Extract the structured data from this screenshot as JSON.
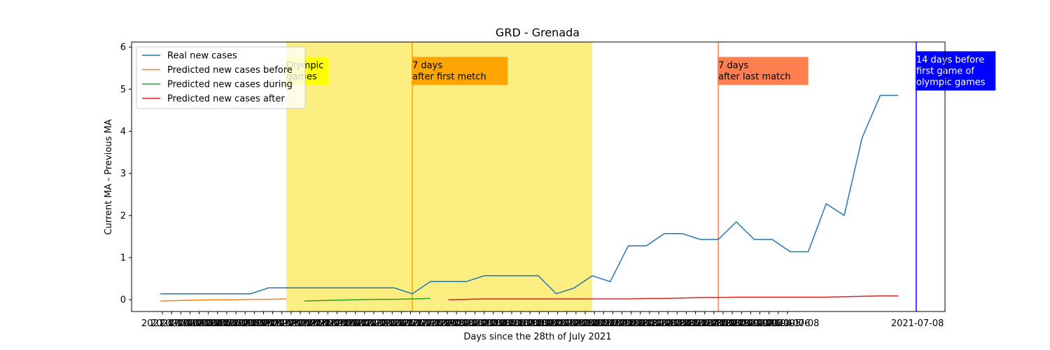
{
  "chart_data": {
    "type": "line",
    "title": "GRD - Grenada",
    "xlabel": "Days since the 28th of July 2021",
    "ylabel": "Current MA - Previous MA",
    "ylim": [
      -0.28,
      6.12
    ],
    "xlim": [
      -1.6,
      43.6
    ],
    "yticks": [
      0,
      1,
      2,
      3,
      4,
      5,
      6
    ],
    "x_tick_labels": [
      "2021-07-01",
      "2021-07-02",
      "2021-07-03",
      "2021-07-04",
      "2021-07-05",
      "2021-07-06",
      "2021-07-07",
      "2021-07-08",
      "2021-07-09",
      "2021-07-10",
      "2021-07-11",
      "2021-07-12",
      "2021-07-13",
      "2021-07-14",
      "2021-07-15",
      "2021-07-16",
      "2021-07-17",
      "2021-07-18",
      "2021-07-19",
      "2021-07-20",
      "2021-07-21",
      "2021-07-22",
      "2021-07-23",
      "2021-07-24",
      "2021-07-25",
      "2021-07-26",
      "2021-07-27",
      "2021-07-28",
      "2021-07-29",
      "2021-07-30",
      "2021-07-31",
      "2021-08-01",
      "2021-08-02",
      "2021-08-03",
      "2021-08-04",
      "2021-08-05",
      "2021-08-06",
      "2021-08-07",
      "2021-08-08",
      "2021-08-09",
      "2021-08-10",
      "2021-08-11",
      "2021-08-12",
      "2021-08-13",
      "2021-08-14",
      "2021-08-15",
      "2021-08-16",
      "2021-08-17",
      "2021-08-18",
      "2021-08-19",
      "2021-08-20",
      "2021-08-21",
      "2021-08-22",
      "2021-08-23",
      "2021-08-24",
      "2021-08-25",
      "2021-08-26",
      "2021-08-27",
      "2021-08-28",
      "2021-08-29",
      "2021-08-30",
      "2021-08-31",
      "2021-09-01",
      "2021-09-02",
      "2021-09-03",
      "2021-09-04",
      "2021-09-05",
      "2021-09-06",
      "2021-07-08"
    ],
    "series": [
      {
        "name": "Real new cases",
        "color": "#1f77b4",
        "x": [
          0,
          1,
          2,
          3,
          4,
          5,
          6,
          7,
          8,
          9,
          10,
          11,
          12,
          13,
          14,
          15,
          16,
          17,
          18,
          19,
          20,
          21,
          22,
          23,
          24,
          25,
          26,
          27,
          28,
          29,
          30,
          31,
          32,
          33,
          34,
          35,
          36,
          37,
          38,
          39,
          40,
          41
        ],
        "y": [
          0.14,
          0.14,
          0.14,
          0.14,
          0.14,
          0.14,
          0.28,
          0.28,
          0.28,
          0.28,
          0.28,
          0.28,
          0.28,
          0.28,
          0.14,
          0.43,
          0.43,
          0.43,
          0.57,
          0.57,
          0.57,
          0.57,
          0.14,
          0.28,
          0.57,
          0.43,
          1.28,
          1.28,
          1.57,
          1.57,
          1.43,
          1.43,
          1.85,
          1.43,
          1.43,
          1.14,
          1.14,
          2.28,
          2.0,
          3.85,
          4.85,
          4.85
        ]
      },
      {
        "name": "Predicted new cases before",
        "color": "#ff7f0e",
        "x": [
          0,
          1,
          2,
          3,
          4,
          5,
          6,
          7
        ],
        "y": [
          -0.03,
          -0.02,
          -0.01,
          0.0,
          0.0,
          0.01,
          0.01,
          0.02
        ]
      },
      {
        "name": "Predicted new cases during",
        "color": "#2ca02c",
        "x": [
          8,
          9,
          10,
          11,
          12,
          13,
          14,
          15
        ],
        "y": [
          -0.03,
          -0.02,
          -0.01,
          0.0,
          0.01,
          0.01,
          0.02,
          0.03
        ]
      },
      {
        "name": "Predicted new cases after",
        "color": "#d62728",
        "x": [
          16,
          17,
          18,
          19,
          20,
          21,
          22,
          23,
          24,
          25,
          26,
          27,
          28,
          29,
          30,
          31,
          32,
          33,
          34,
          35,
          36,
          37,
          38,
          39,
          40,
          41
        ],
        "y": [
          0.0,
          0.01,
          0.02,
          0.02,
          0.02,
          0.02,
          0.02,
          0.02,
          0.02,
          0.02,
          0.02,
          0.03,
          0.03,
          0.04,
          0.05,
          0.05,
          0.06,
          0.06,
          0.06,
          0.06,
          0.06,
          0.06,
          0.07,
          0.08,
          0.09,
          0.09
        ]
      }
    ],
    "shaded_region": {
      "x_start": 7,
      "x_end": 24,
      "color": "#fdee82"
    },
    "vlines": [
      {
        "x": 14,
        "color": "#ffa500"
      },
      {
        "x": 31,
        "color": "#ff7f50"
      },
      {
        "x": 42,
        "color": "#0000ff"
      }
    ],
    "annotations": [
      {
        "text": "Olympic\ngames",
        "x": 7,
        "y": 5.5,
        "bg": "#ffff00",
        "fg": "#000000"
      },
      {
        "text": "7 days\nafter first metch",
        "x": 14,
        "y": 5.5,
        "bg": "#ffa500",
        "fg": "#000000"
      },
      {
        "text": "7 days\nafter last match",
        "x": 31,
        "y": 5.5,
        "bg": "#ff7f50",
        "fg": "#000000"
      },
      {
        "text": "14 days before\nfirst game of\nolympic games",
        "x": 42,
        "y": 5.5,
        "bg": "#0000ff",
        "fg": "#ffffff"
      }
    ],
    "legend": "top-left",
    "grid": false
  }
}
